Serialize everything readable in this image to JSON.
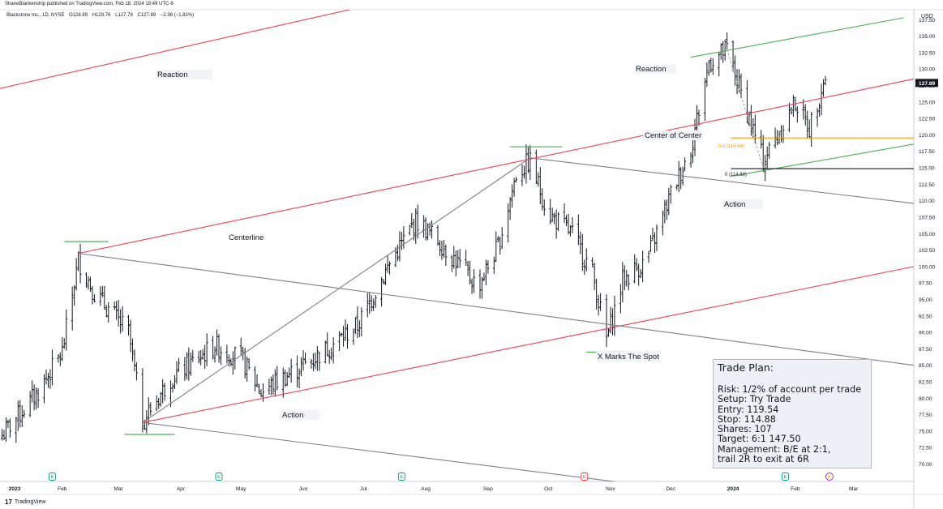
{
  "header": {
    "published_by": "ShaneBlankenship published on TradingView.com, Feb 18, 2024 19:49 UTC-8",
    "symbol": "Blackstone Inc., 1D, NYSE",
    "open": "O128.89",
    "high": "H129.76",
    "low": "L127.78",
    "close": "C127.89",
    "change": "−2.36 (−1.81%)"
  },
  "currency_label": "USD",
  "brand": {
    "name": "TradingView",
    "logo_text": "17"
  },
  "colors": {
    "pitchfork_red": "#ef4050",
    "reaction_green": "#4caf50",
    "gray_lines": "#7f7f87",
    "fib_orange": "#ff9800",
    "fib_black": "#131722",
    "candle": "#131722",
    "earnings_green": "#089981",
    "earnings_red": "#f23645",
    "price_tag_bg": "#131722"
  },
  "annotations": {
    "reaction_top": "Reaction",
    "reaction_right": "Reaction",
    "centerline": "Centerline",
    "center_of_center": "Center of Center",
    "action_bottom": "Action",
    "action_right": "Action",
    "x_marks": "X Marks The Spot",
    "fib_05": "0.5 (119.54)",
    "fib_0": "0 (114.88)"
  },
  "trade_plan": {
    "title": "Trade Plan:",
    "lines": [
      "Risk: 1/2% of account per trade",
      "Setup: Try Trade",
      "Entry: 119.54",
      "Stop: 114.88",
      "Shares: 107",
      "Target: 6:1 147.50",
      "Management: B/E at 2:1,",
      "trail 2R to exit at 6R"
    ]
  },
  "event_markers": [
    {
      "label": "E",
      "kind": "earnings"
    },
    {
      "label": "E",
      "kind": "earnings"
    },
    {
      "label": "E",
      "kind": "earnings"
    },
    {
      "label": "E",
      "kind": "earnings-negative"
    },
    {
      "label": "E",
      "kind": "earnings"
    },
    {
      "label": "⚡",
      "kind": "event"
    }
  ],
  "chart_data": {
    "type": "ohlc",
    "ylim": [
      66,
      140
    ],
    "y_ticks": [
      "67.50",
      "70.00",
      "72.50",
      "75.00",
      "77.50",
      "80.00",
      "82.50",
      "85.00",
      "87.50",
      "90.00",
      "92.50",
      "95.00",
      "97.50",
      "100.00",
      "102.50",
      "105.00",
      "107.50",
      "110.00",
      "112.50",
      "115.00",
      "117.50",
      "120.00",
      "122.50",
      "125.00",
      "127.50",
      "130.00",
      "132.50",
      "135.00",
      "137.50"
    ],
    "last_price": "127.89",
    "x_ticks": [
      "2023",
      "Feb",
      "Mar",
      "Apr",
      "May",
      "Jun",
      "Jul",
      "Aug",
      "Sep",
      "Oct",
      "Nov",
      "Dec",
      "2024",
      "Feb",
      "Mar"
    ],
    "x_range": [
      "2023-01-01",
      "2024-03-31"
    ],
    "price_path": [
      [
        "2023-01-01",
        74
      ],
      [
        "2023-01-20",
        81
      ],
      [
        "2023-02-01",
        87
      ],
      [
        "2023-02-09",
        101
      ],
      [
        "2023-02-17",
        96
      ],
      [
        "2023-03-06",
        90
      ],
      [
        "2023-03-13",
        76.5
      ],
      [
        "2023-03-27",
        83
      ],
      [
        "2023-04-18",
        88
      ],
      [
        "2023-05-01",
        86
      ],
      [
        "2023-05-11",
        81
      ],
      [
        "2023-06-06",
        86
      ],
      [
        "2023-06-28",
        91
      ],
      [
        "2023-07-15",
        101
      ],
      [
        "2023-07-27",
        107
      ],
      [
        "2023-08-07",
        104
      ],
      [
        "2023-08-27",
        97
      ],
      [
        "2023-09-06",
        103
      ],
      [
        "2023-09-15",
        114
      ],
      [
        "2023-09-22",
        116
      ],
      [
        "2023-10-01",
        108
      ],
      [
        "2023-10-13",
        105
      ],
      [
        "2023-10-23",
        99
      ],
      [
        "2023-10-30",
        89
      ],
      [
        "2023-11-07",
        98
      ],
      [
        "2023-11-19",
        101
      ],
      [
        "2023-12-01",
        111
      ],
      [
        "2023-12-11",
        118
      ],
      [
        "2023-12-20",
        131
      ],
      [
        "2023-12-29",
        133
      ],
      [
        "2024-01-16",
        116
      ],
      [
        "2024-02-01",
        125
      ],
      [
        "2024-02-08",
        121
      ],
      [
        "2024-02-16",
        129
      ],
      [
        "2024-02-24",
        128
      ]
    ],
    "lines": [
      {
        "name": "median-line-centerline",
        "color": "pitchfork_red",
        "from": [
          "2023-02-09",
          102.0
        ],
        "to": [
          "2024-03-31",
          128.5
        ]
      },
      {
        "name": "upper-parallel-reaction",
        "color": "pitchfork_red",
        "from": [
          "2022-12-31",
          127.0
        ],
        "to": [
          "2023-07-01",
          139.5
        ]
      },
      {
        "name": "lower-parallel-action",
        "color": "pitchfork_red",
        "from": [
          "2023-03-13",
          76.3
        ],
        "to": [
          "2024-03-31",
          100.0
        ]
      },
      {
        "name": "green-reaction-upper",
        "color": "reaction_green",
        "from": [
          "2023-12-11",
          131.8
        ],
        "to": [
          "2024-03-26",
          137.8
        ]
      },
      {
        "name": "green-action-lower",
        "color": "reaction_green",
        "from": [
          "2023-12-31",
          113.7
        ],
        "to": [
          "2024-03-31",
          118.6
        ]
      },
      {
        "name": "gray-center-of-center",
        "color": "gray_lines",
        "from": [
          "2023-09-22",
          116.5
        ],
        "to": [
          "2024-03-31",
          109.6
        ]
      },
      {
        "name": "gray-x-line",
        "color": "gray_lines",
        "from": [
          "2023-02-09",
          102.0
        ],
        "to": [
          "2024-03-31",
          85.0
        ]
      },
      {
        "name": "gray-lower-line",
        "color": "gray_lines",
        "from": [
          "2023-03-13",
          76.3
        ],
        "to": [
          "2023-12-08",
          66.0
        ]
      },
      {
        "name": "gray-trend-line",
        "color": "gray_lines",
        "from": [
          "2023-03-13",
          76.3
        ],
        "to": [
          "2023-09-22",
          116.5
        ]
      }
    ],
    "fib_levels": [
      {
        "level": "0.5",
        "price": 119.54,
        "color": "fib_orange"
      },
      {
        "level": "0",
        "price": 114.88,
        "color": "fib_black"
      }
    ]
  }
}
